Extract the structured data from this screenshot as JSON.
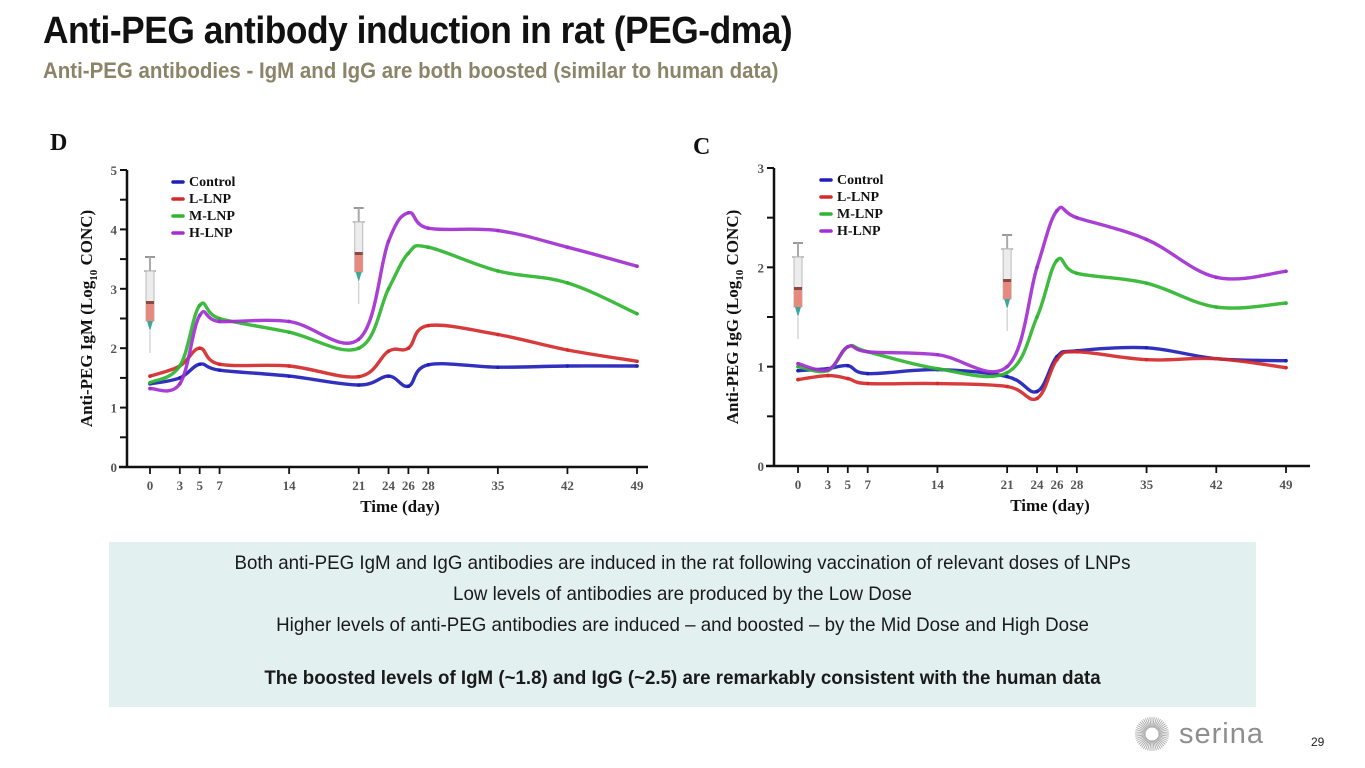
{
  "header": {
    "title": "Anti-PEG antibody induction in rat (PEG-dma)",
    "subtitle": "Anti-PEG antibodies - IgM and IgG are both boosted (similar to human data)"
  },
  "chart_data": [
    {
      "type": "line",
      "panel": "D",
      "xlabel": "Time (day)",
      "ylabel": "Anti-PEG IgM (Log10 CONC)",
      "ylabel_main": "Anti-PEG IgM (Log",
      "ylabel_sub": "10",
      "ylabel_end": " CONC)",
      "xlim": [
        0,
        49
      ],
      "ylim": [
        0,
        5
      ],
      "yticks": [
        0,
        1,
        2,
        3,
        4,
        5
      ],
      "yminor": [
        0.5,
        1.5,
        2.5,
        3.5,
        4.5
      ],
      "x": [
        0,
        3,
        5,
        7,
        14,
        21,
        24,
        26,
        28,
        35,
        42,
        49
      ],
      "xtick_labels": [
        "0",
        "3",
        "5",
        "7",
        "14",
        "21",
        "24",
        "26",
        "28",
        "35",
        "42",
        "49"
      ],
      "legend_position": "top-left",
      "grid": false,
      "annotations": [
        "syringe (injection) at day 0",
        "syringe (injection) at day 21"
      ],
      "injection_days": [
        0,
        21
      ],
      "series": [
        {
          "name": "Control",
          "color": "#1f1fb8",
          "values": [
            1.4,
            1.5,
            1.73,
            1.63,
            1.53,
            1.38,
            1.53,
            1.36,
            1.72,
            1.68,
            1.7,
            1.7
          ]
        },
        {
          "name": "L-LNP",
          "color": "#d42a2a",
          "values": [
            1.53,
            1.7,
            2.0,
            1.73,
            1.7,
            1.52,
            1.95,
            2.0,
            2.38,
            2.23,
            1.97,
            1.78
          ]
        },
        {
          "name": "M-LNP",
          "color": "#2fb52f",
          "values": [
            1.42,
            1.7,
            2.72,
            2.5,
            2.27,
            2.0,
            3.0,
            3.6,
            3.7,
            3.3,
            3.1,
            2.58
          ]
        },
        {
          "name": "H-LNP",
          "color": "#a22fd0",
          "values": [
            1.32,
            1.4,
            2.55,
            2.45,
            2.45,
            2.15,
            3.8,
            4.28,
            4.02,
            3.98,
            3.7,
            3.38
          ]
        }
      ]
    },
    {
      "type": "line",
      "panel": "C",
      "xlabel": "Time (day)",
      "ylabel": "Anti-PEG IgG (Log10 CONC)",
      "ylabel_main": "Anti-PEG IgG (Log",
      "ylabel_sub": "10",
      "ylabel_end": " CONC)",
      "xlim": [
        0,
        49
      ],
      "ylim": [
        0,
        3
      ],
      "yticks": [
        0,
        1,
        2,
        3
      ],
      "yminor": [
        0.5,
        1.5,
        2.5
      ],
      "x": [
        0,
        3,
        5,
        7,
        14,
        21,
        24,
        26,
        28,
        35,
        42,
        49
      ],
      "xtick_labels": [
        "0",
        "3",
        "5",
        "7",
        "14",
        "21",
        "24",
        "26",
        "28",
        "35",
        "42",
        "49"
      ],
      "legend_position": "top-left",
      "grid": false,
      "annotations": [
        "syringe (injection) at day 0",
        "syringe (injection) at day 21"
      ],
      "injection_days": [
        0,
        21
      ],
      "series": [
        {
          "name": "Control",
          "color": "#1f1fb8",
          "values": [
            0.96,
            0.98,
            1.01,
            0.93,
            0.97,
            0.9,
            0.75,
            1.1,
            1.16,
            1.19,
            1.08,
            1.06
          ]
        },
        {
          "name": "L-LNP",
          "color": "#d42a2a",
          "values": [
            0.87,
            0.91,
            0.88,
            0.83,
            0.83,
            0.8,
            0.68,
            1.07,
            1.15,
            1.07,
            1.08,
            0.99
          ]
        },
        {
          "name": "M-LNP",
          "color": "#2fb52f",
          "values": [
            1.0,
            0.96,
            1.2,
            1.15,
            0.98,
            0.94,
            1.5,
            2.07,
            1.94,
            1.84,
            1.6,
            1.64
          ]
        },
        {
          "name": "H-LNP",
          "color": "#a22fd0",
          "values": [
            1.03,
            0.97,
            1.2,
            1.15,
            1.12,
            1.0,
            2.0,
            2.57,
            2.5,
            2.28,
            1.9,
            1.96
          ]
        }
      ]
    }
  ],
  "notes": {
    "lines": [
      "Both anti-PEG IgM and IgG antibodies are induced in the rat following vaccination of relevant doses of LNPs",
      "Low levels of antibodies are produced by the Low Dose",
      "Higher levels of anti-PEG antibodies are induced – and boosted – by the Mid Dose and High Dose"
    ],
    "conclusion": "The boosted levels of IgM (~1.8) and IgG (~2.5) are remarkably consistent with the human data"
  },
  "footer": {
    "logo_text": "serina",
    "logo_icon": "sunburst-icon",
    "page_number": "29"
  }
}
